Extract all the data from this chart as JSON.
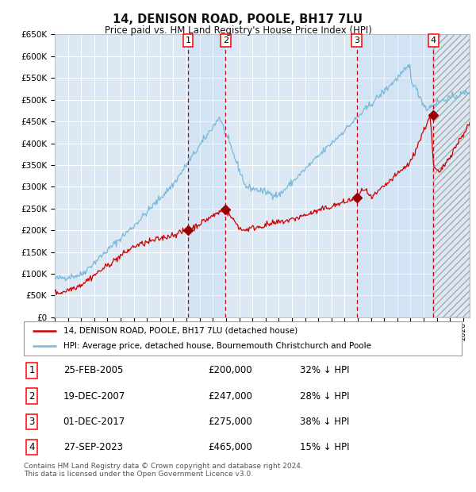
{
  "title": "14, DENISON ROAD, POOLE, BH17 7LU",
  "subtitle": "Price paid vs. HM Land Registry's House Price Index (HPI)",
  "ylim": [
    0,
    650000
  ],
  "yticks": [
    0,
    50000,
    100000,
    150000,
    200000,
    250000,
    300000,
    350000,
    400000,
    450000,
    500000,
    550000,
    600000,
    650000
  ],
  "xlim_start": 1995.0,
  "xlim_end": 2026.5,
  "background_color": "#ffffff",
  "plot_bg_color": "#dce9f5",
  "grid_color": "#ffffff",
  "hpi_line_color": "#7ab8d9",
  "price_line_color": "#cc0000",
  "sale_marker_color": "#990000",
  "dashed_line_color": "#cc0000",
  "legend_line1": "14, DENISON ROAD, POOLE, BH17 7LU (detached house)",
  "legend_line2": "HPI: Average price, detached house, Bournemouth Christchurch and Poole",
  "table_entries": [
    {
      "num": 1,
      "date": "25-FEB-2005",
      "price": "£200,000",
      "pct": "32% ↓ HPI",
      "year": 2005.12
    },
    {
      "num": 2,
      "date": "19-DEC-2007",
      "price": "£247,000",
      "pct": "28% ↓ HPI",
      "year": 2007.96
    },
    {
      "num": 3,
      "date": "01-DEC-2017",
      "price": "£275,000",
      "pct": "38% ↓ HPI",
      "year": 2017.92
    },
    {
      "num": 4,
      "date": "27-SEP-2023",
      "price": "£465,000",
      "pct": "15% ↓ HPI",
      "year": 2023.74
    }
  ],
  "sale_values": [
    200000,
    247000,
    275000,
    465000
  ],
  "footer": "Contains HM Land Registry data © Crown copyright and database right 2024.\nThis data is licensed under the Open Government Licence v3.0."
}
